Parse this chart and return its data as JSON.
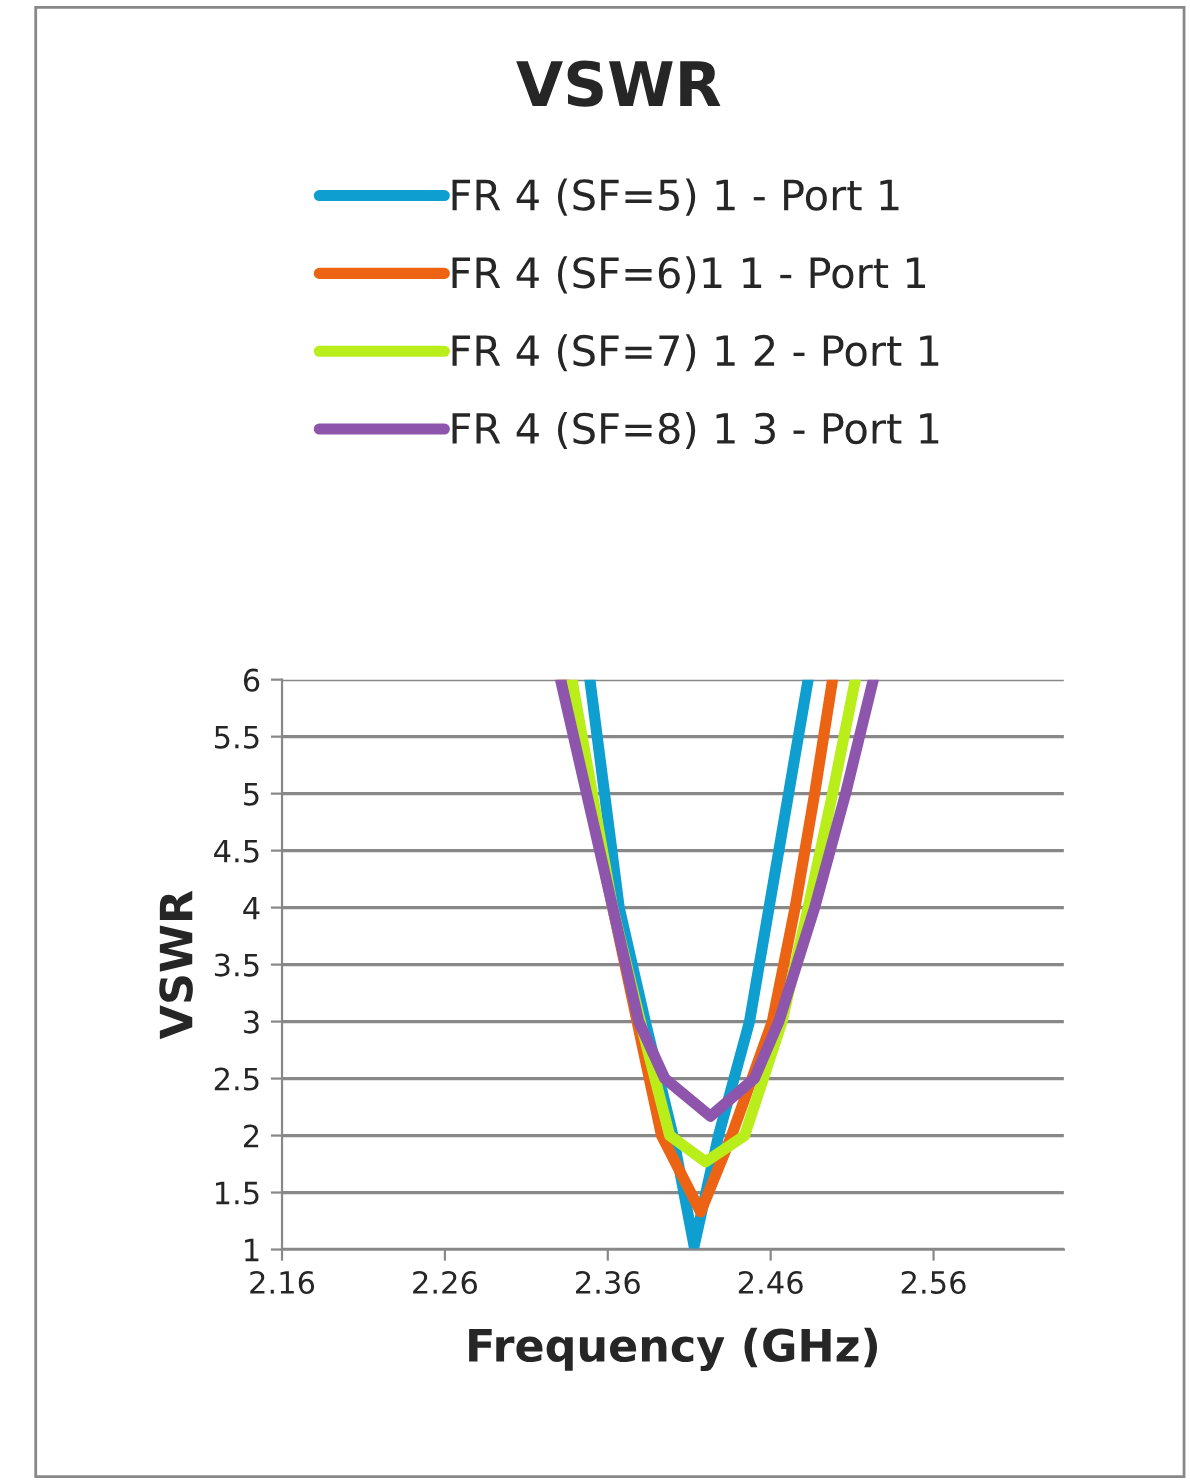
{
  "chart_data": {
    "type": "line",
    "title": "VSWR",
    "xlabel": "Frequency (GHz)",
    "ylabel": "VSWR",
    "xlim": [
      2.16,
      2.64
    ],
    "xticks": [
      2.16,
      2.26,
      2.36,
      2.46,
      2.56
    ],
    "ylim": [
      1,
      6
    ],
    "yticks": [
      1,
      1.5,
      2,
      2.5,
      3,
      3.5,
      4,
      4.5,
      5,
      5.5,
      6
    ],
    "grid": "y",
    "legend": "top",
    "marker": "none",
    "line_style": "solid",
    "series": [
      {
        "name": "FR 4 (SF=5) 1 - Port 1",
        "color": "#0e9fd0",
        "x": [
          2.349,
          2.367,
          2.383,
          2.4,
          2.413,
          2.428,
          2.447,
          2.459,
          2.471,
          2.483
        ],
        "values": [
          6,
          4,
          3,
          2,
          1.03,
          2,
          3,
          4,
          5,
          6
        ]
      },
      {
        "name": "FR 4 (SF=6)1 1 - Port 1",
        "color": "#ec6413",
        "x": [
          2.333,
          2.363,
          2.378,
          2.393,
          2.417,
          2.436,
          2.461,
          2.475,
          2.487,
          2.498
        ],
        "values": [
          6,
          4,
          3,
          2,
          1.33,
          2,
          3,
          4,
          5,
          6
        ]
      },
      {
        "name": "FR 4 (SF=7) 1 2 - Port 1",
        "color": "#b9ee1a",
        "x": [
          2.338,
          2.363,
          2.38,
          2.398,
          2.42,
          2.444,
          2.467,
          2.483,
          2.498,
          2.512
        ],
        "values": [
          6,
          4,
          3,
          2,
          1.77,
          2,
          3,
          4,
          5,
          6
        ]
      },
      {
        "name": "FR 4 (SF=8) 1 3 - Port 1",
        "color": "#8e55ad",
        "x": [
          2.331,
          2.363,
          2.379,
          2.395,
          2.423,
          2.45,
          2.465,
          2.487,
          2.506,
          2.523
        ],
        "values": [
          6,
          4,
          3,
          2.5,
          2.17,
          2.5,
          3,
          4,
          5,
          6
        ]
      }
    ]
  }
}
